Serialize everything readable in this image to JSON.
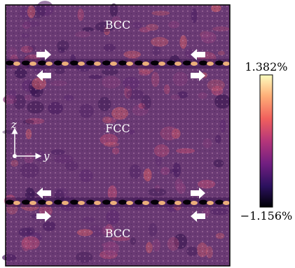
{
  "map": {
    "regions": {
      "top": "BCC",
      "middle": "FCC",
      "bottom": "BCC"
    },
    "axes": {
      "vertical": "z",
      "horizontal": "y"
    },
    "interfaces": [
      {
        "name": "upper",
        "arrows_above": "right-left",
        "arrows_below": "left-right"
      },
      {
        "name": "lower",
        "arrows_above": "left-right",
        "arrows_below": "right-left"
      }
    ]
  },
  "colorbar": {
    "max_label": "1.382%",
    "min_label": "−1.156%",
    "max_value": 1.382,
    "min_value": -1.156,
    "colormap": "magma",
    "stops": [
      "#000004",
      "#2c115f",
      "#721f81",
      "#b5367a",
      "#f1605d",
      "#feae77",
      "#fcfdbf"
    ]
  },
  "colors": {
    "background": "#6a3a74",
    "frame": "#000000",
    "arrow": "#ffffff"
  }
}
